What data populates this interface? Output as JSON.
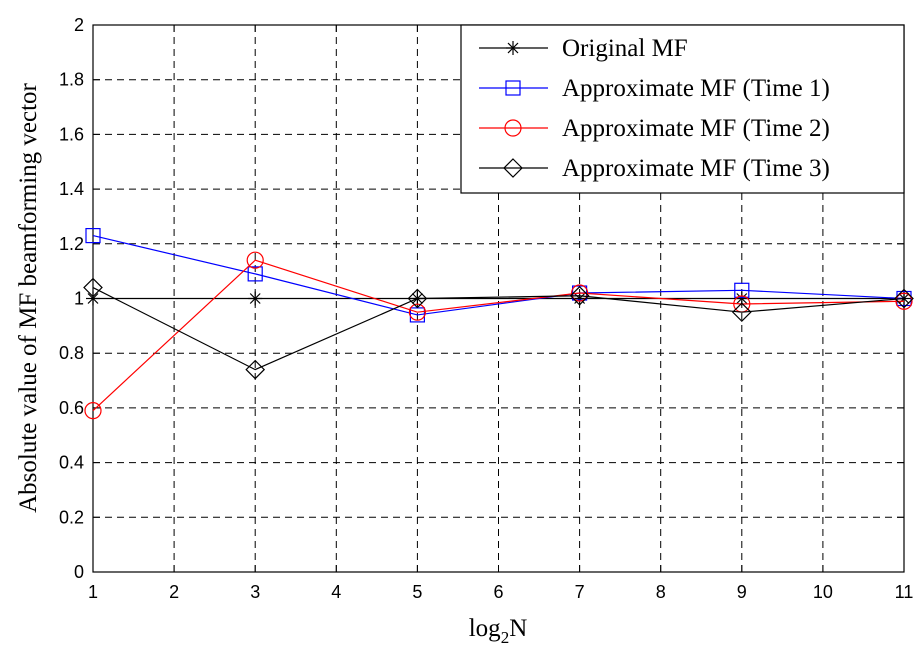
{
  "chart_data": {
    "type": "line",
    "xlabel": "log",
    "xlabel_sub": "2",
    "xlabel_suffix": "N",
    "ylabel": "Absolute value of MF beamforming vector",
    "xlim": [
      1,
      11
    ],
    "ylim": [
      0,
      2
    ],
    "xticks": [
      1,
      2,
      3,
      4,
      5,
      6,
      7,
      8,
      9,
      10,
      11
    ],
    "yticks": [
      0,
      0.2,
      0.4,
      0.6,
      0.8,
      1,
      1.2,
      1.4,
      1.6,
      1.8,
      2
    ],
    "grid": true,
    "legend_position": "top-right",
    "x": [
      1,
      3,
      5,
      7,
      9,
      11
    ],
    "series": [
      {
        "name": "Original  MF",
        "values": [
          1.0,
          1.0,
          1.0,
          1.0,
          1.0,
          1.0
        ],
        "color": "#000000",
        "marker": "star"
      },
      {
        "name": "Approximate MF (Time 1)",
        "values": [
          1.23,
          1.09,
          0.94,
          1.02,
          1.03,
          1.0
        ],
        "color": "#0000ff",
        "marker": "square"
      },
      {
        "name": "Approximate MF (Time 2)",
        "values": [
          0.59,
          1.14,
          0.95,
          1.02,
          0.98,
          0.99
        ],
        "color": "#ff0000",
        "marker": "circle"
      },
      {
        "name": "Approximate MF (Time 3)",
        "values": [
          1.04,
          0.74,
          1.0,
          1.01,
          0.95,
          1.0
        ],
        "color": "#000000",
        "marker": "diamond"
      }
    ]
  }
}
